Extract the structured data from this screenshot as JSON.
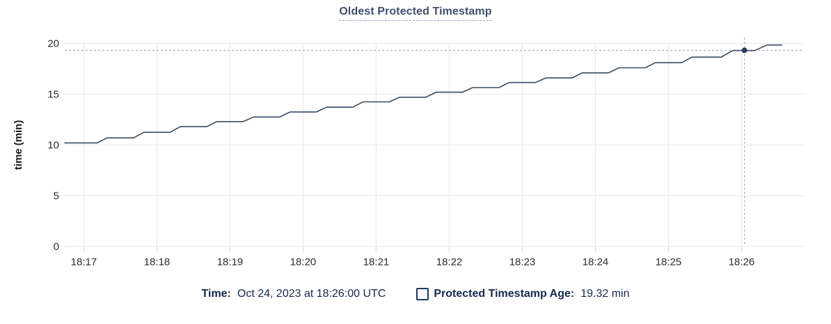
{
  "title": "Oldest Protected Timestamp",
  "colors": {
    "title_text": "#3e4f6e",
    "legend_text": "#15294b",
    "tick_text": "#2b2b2b",
    "axis_label_text": "#1a1a1a",
    "gridline": "#ececec",
    "tick_mark": "#dddddd",
    "series_line": "#394a63",
    "hover_dot": "#2e3c55",
    "crosshair": "#a9b8c6",
    "background": "#ffffff"
  },
  "chart_data": {
    "type": "line",
    "title": "Oldest Protected Timestamp",
    "xlabel": "",
    "ylabel": "time (min)",
    "ylim": [
      0,
      20
    ],
    "yticks": [
      0,
      5,
      10,
      15,
      20
    ],
    "xticks": [
      "18:17",
      "18:18",
      "18:19",
      "18:20",
      "18:21",
      "18:22",
      "18:23",
      "18:24",
      "18:25",
      "18:26"
    ],
    "grid": true,
    "legend_position": "bottom",
    "series": [
      {
        "name": "Protected Timestamp Age",
        "unit": "min",
        "points": [
          [
            -0.26,
            10.2
          ],
          [
            0.18,
            10.2
          ],
          [
            0.32,
            10.7
          ],
          [
            0.68,
            10.7
          ],
          [
            0.82,
            11.25
          ],
          [
            1.18,
            11.25
          ],
          [
            1.32,
            11.8
          ],
          [
            1.68,
            11.8
          ],
          [
            1.82,
            12.3
          ],
          [
            2.18,
            12.3
          ],
          [
            2.32,
            12.75
          ],
          [
            2.68,
            12.75
          ],
          [
            2.82,
            13.25
          ],
          [
            3.18,
            13.25
          ],
          [
            3.32,
            13.72
          ],
          [
            3.68,
            13.72
          ],
          [
            3.82,
            14.25
          ],
          [
            4.18,
            14.25
          ],
          [
            4.32,
            14.7
          ],
          [
            4.68,
            14.7
          ],
          [
            4.82,
            15.2
          ],
          [
            5.18,
            15.2
          ],
          [
            5.32,
            15.65
          ],
          [
            5.68,
            15.65
          ],
          [
            5.82,
            16.15
          ],
          [
            6.18,
            16.15
          ],
          [
            6.32,
            16.6
          ],
          [
            6.68,
            16.6
          ],
          [
            6.82,
            17.1
          ],
          [
            7.18,
            17.1
          ],
          [
            7.32,
            17.6
          ],
          [
            7.68,
            17.6
          ],
          [
            7.82,
            18.1
          ],
          [
            8.18,
            18.1
          ],
          [
            8.32,
            18.65
          ],
          [
            8.72,
            18.65
          ],
          [
            8.88,
            19.3
          ],
          [
            9.18,
            19.3
          ],
          [
            9.35,
            19.85
          ],
          [
            9.55,
            19.85
          ]
        ]
      }
    ],
    "hover": {
      "x_minute": 9.04,
      "x_time": "18:26:00",
      "value": 19.32
    }
  },
  "legend": {
    "time_label": "Time:",
    "time_value": "Oct 24, 2023 at 18:26:00 UTC",
    "series_label": "Protected Timestamp Age:",
    "series_value": "19.32 min"
  }
}
